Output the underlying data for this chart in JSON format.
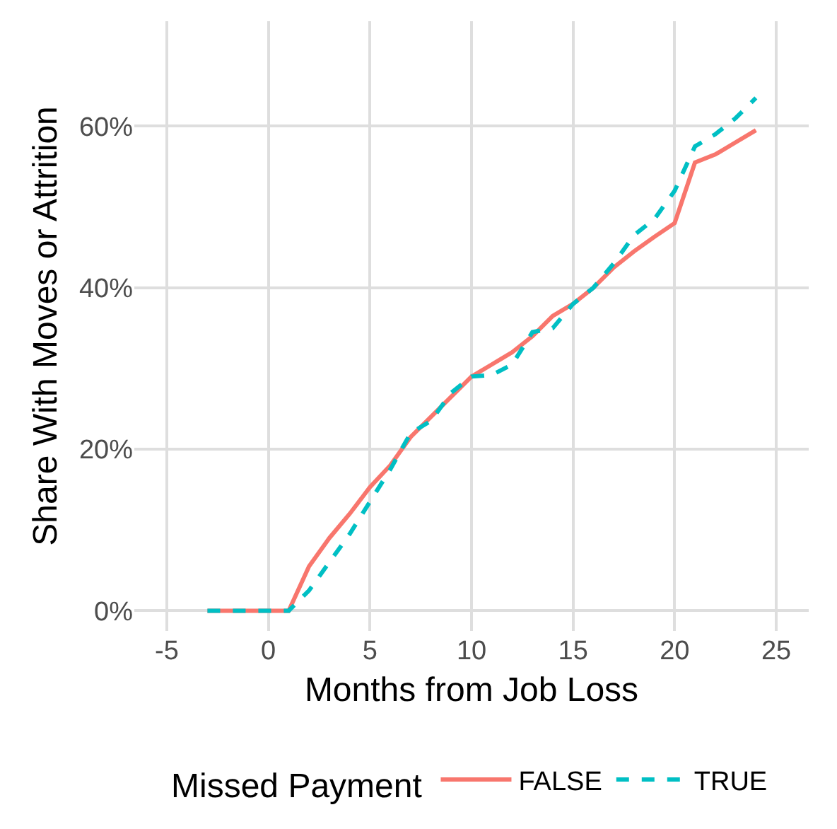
{
  "chart_data": {
    "type": "line",
    "xlabel": "Months from Job Loss",
    "ylabel": "Share With Moves or Attrition",
    "legend_title": "Missed Payment",
    "legend": "bottom",
    "grid": true,
    "x": [
      -3,
      -2,
      -1,
      0,
      1,
      2,
      3,
      4,
      5,
      6,
      7,
      8,
      9,
      10,
      11,
      12,
      13,
      14,
      15,
      16,
      17,
      18,
      19,
      20,
      21,
      22,
      23,
      24
    ],
    "xlim": [
      -6.6,
      26.6
    ],
    "xticks": [
      -5,
      0,
      5,
      10,
      15,
      20,
      25
    ],
    "ylim": [
      -2.5,
      73
    ],
    "yticks": [
      {
        "value": 0,
        "label": "0%"
      },
      {
        "value": 20,
        "label": "20%"
      },
      {
        "value": 40,
        "label": "40%"
      },
      {
        "value": 60,
        "label": "60%"
      }
    ],
    "series": [
      {
        "name": "FALSE",
        "color": "#f8766d",
        "line_style": "solid",
        "values": [
          0,
          0,
          0,
          0,
          0,
          5.5,
          9,
          12,
          15.3,
          18,
          21.5,
          24,
          26.5,
          29,
          30.5,
          32,
          34,
          36.5,
          38,
          40,
          42.5,
          44.5,
          46.3,
          48,
          55.5,
          56.5,
          58,
          59.5
        ]
      },
      {
        "name": "TRUE",
        "color": "#00bfc4",
        "line_style": "dashed",
        "values": [
          0,
          0,
          0,
          0,
          0,
          2.5,
          6,
          9.5,
          13.5,
          17.5,
          22,
          23.5,
          27,
          29,
          29.2,
          30.5,
          34.5,
          35,
          38,
          40,
          43,
          46.5,
          48.5,
          52,
          57.5,
          59,
          61,
          63.5
        ]
      }
    ]
  }
}
